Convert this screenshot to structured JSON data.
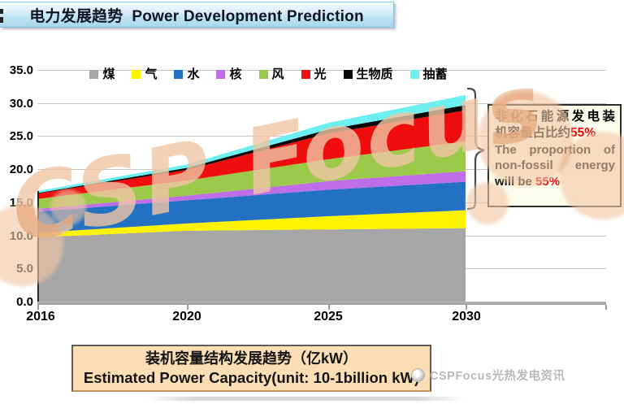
{
  "title_bar": {
    "text": "电力发展趋势  Power Development Prediction"
  },
  "chart_data": {
    "type": "area",
    "stacked": true,
    "title": "电力发展趋势 Power Development Prediction",
    "x": [
      2016,
      2020,
      2025,
      2030
    ],
    "x_tick_labels": [
      "2016",
      "2020",
      "2025",
      "2030"
    ],
    "y_ticks": [
      0,
      5,
      10,
      15,
      20,
      25,
      30,
      35
    ],
    "y_tick_labels": [
      "0.0",
      "5.0",
      "10.0",
      "15.0",
      "20.0",
      "25.0",
      "30.0",
      "35.0"
    ],
    "ylim": [
      0,
      35
    ],
    "unit": "亿kW (100 million kW)",
    "grid": true,
    "legend_position": "top",
    "series": [
      {
        "name": "煤",
        "color": "#a6a6a6",
        "values": [
          9.7,
          10.7,
          10.9,
          11.1
        ]
      },
      {
        "name": "气",
        "color": "#fdf300",
        "values": [
          0.7,
          1.1,
          2.0,
          2.7
        ]
      },
      {
        "name": "水",
        "color": "#2271c3",
        "values": [
          3.2,
          3.5,
          4.0,
          4.3
        ]
      },
      {
        "name": "核",
        "color": "#c06ee8",
        "values": [
          0.4,
          0.7,
          1.3,
          1.6
        ]
      },
      {
        "name": "风",
        "color": "#9cc94a",
        "values": [
          1.5,
          2.3,
          3.3,
          4.5
        ]
      },
      {
        "name": "光",
        "color": "#ef0d0d",
        "values": [
          0.8,
          1.6,
          3.9,
          4.7
        ]
      },
      {
        "name": "生物质",
        "color": "#0a0a0a",
        "values": [
          0.1,
          0.3,
          0.6,
          0.8
        ]
      },
      {
        "name": "抽蓄",
        "color": "#6ceff0",
        "values": [
          0.3,
          0.5,
          1.0,
          1.5
        ]
      }
    ],
    "stack_totals": [
      16.7,
      20.7,
      27.0,
      31.2
    ]
  },
  "annotation": {
    "cn_line1": "非化石能源发电装",
    "cn_line2_prefix": "机容量占比约",
    "cn_highlight": "55%",
    "en_line1": "The proportion of",
    "en_line2": "non-fossil energy",
    "en_line3_prefix": "will be ",
    "en_highlight": "55%"
  },
  "caption": {
    "cn": "装机容量结构发展趋势（亿kW）",
    "en": "Estimated Power Capacity(unit: 10-1billion kW)"
  },
  "footer": {
    "brand": "CSPFocus光热发电资讯"
  },
  "watermark": {
    "text": "CSP Focus"
  },
  "colors": {
    "highlight_red": "#e60000",
    "caption_bg": "#fbdeb4",
    "annotation_bg": "#fdfdec",
    "title_bar_blue": "#a9d8ec",
    "watermark_tan": "#f0c6a4",
    "axis_gray": "#9a9a9a",
    "grid_gray": "#c6c6c6"
  }
}
